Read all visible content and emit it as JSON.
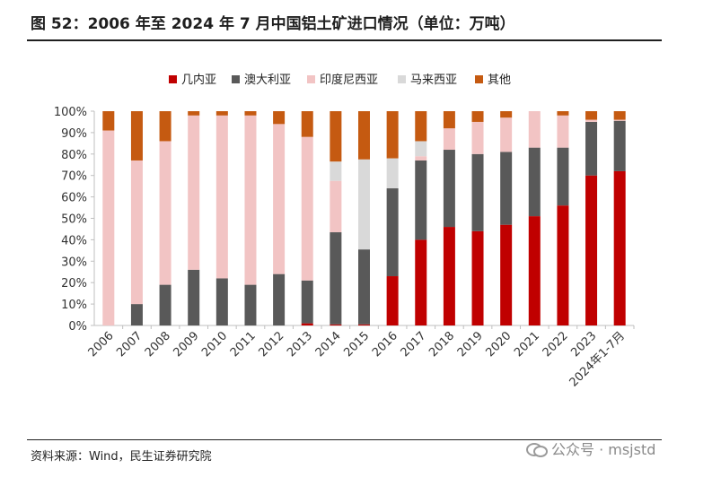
{
  "header": {
    "title": "图 52：2006 年至 2024 年 7 月中国铝土矿进口情况（单位：万吨）"
  },
  "footer": {
    "source": "资料来源：Wind，民生证券研究院",
    "watermark": "公众号 · msjstd"
  },
  "chart_data": {
    "type": "bar",
    "stacked": true,
    "percent": true,
    "categories": [
      "2006",
      "2007",
      "2008",
      "2009",
      "2010",
      "2011",
      "2012",
      "2013",
      "2014",
      "2015",
      "2016",
      "2017",
      "2018",
      "2019",
      "2020",
      "2021",
      "2022",
      "2023",
      "2024年1-7月"
    ],
    "ylim": [
      0,
      100
    ],
    "yticks": [
      "0%",
      "10%",
      "20%",
      "30%",
      "40%",
      "50%",
      "60%",
      "70%",
      "80%",
      "90%",
      "100%"
    ],
    "legend_position": "top",
    "series": [
      {
        "name": "几内亚",
        "color": "#c00000",
        "values": [
          0,
          0,
          0,
          0,
          0,
          0,
          0,
          1,
          0.5,
          0.5,
          23,
          40,
          46,
          44,
          47,
          51,
          56,
          70,
          72
        ]
      },
      {
        "name": "澳大利亚",
        "color": "#595959",
        "values": [
          0,
          10,
          19,
          26,
          22,
          19,
          24,
          20,
          43,
          35,
          41,
          37,
          36,
          36,
          34,
          32,
          27,
          25,
          23.5
        ]
      },
      {
        "name": "印度尼西亚",
        "color": "#f2c4c4",
        "values": [
          91,
          67,
          67,
          72,
          76,
          79,
          70,
          67,
          24,
          0,
          0,
          2,
          10,
          15,
          16,
          17,
          15,
          1,
          0.5
        ]
      },
      {
        "name": "马来西亚",
        "color": "#d9d9d9",
        "values": [
          0,
          0,
          0,
          0,
          0,
          0,
          0,
          0,
          9,
          42,
          14,
          7,
          0,
          0,
          0,
          0,
          0,
          0,
          0
        ]
      },
      {
        "name": "其他",
        "color": "#c55a11",
        "values": [
          9,
          23,
          14,
          2,
          2,
          2,
          6,
          12,
          23.5,
          22.5,
          22,
          14,
          8,
          5,
          3,
          0,
          2,
          4,
          4
        ]
      }
    ]
  }
}
